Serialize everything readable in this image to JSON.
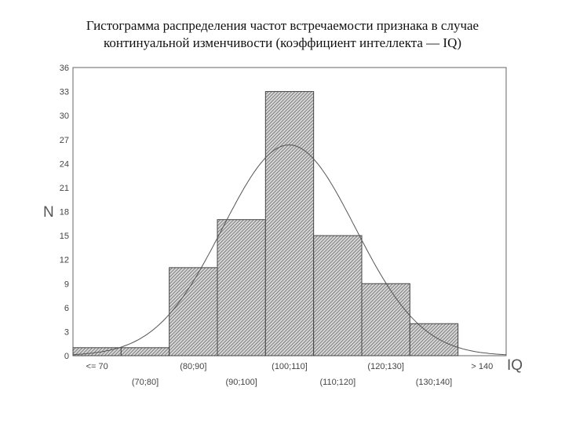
{
  "title_line1": "Гистограмма распределения частот встречаемости признака в случае",
  "title_line2": "континуальной изменчивости (коэффициент интеллекта — IQ)",
  "chart_data": {
    "type": "bar",
    "categories": [
      "<= 70",
      "(70;80]",
      "(80;90]",
      "(90;100]",
      "(100;110]",
      "(110;120]",
      "(120;130]",
      "(130;140]",
      "> 140"
    ],
    "values": [
      1,
      1,
      11,
      17,
      33,
      15,
      9,
      4,
      0
    ],
    "ylabel": "N",
    "xlabel": "IQ",
    "ylim": [
      0,
      36
    ],
    "yticks": [
      0,
      3,
      6,
      9,
      12,
      15,
      18,
      21,
      24,
      27,
      30,
      33,
      36
    ],
    "grid": false,
    "overlay": "normal curve",
    "bar_color": "#8a8a8a",
    "line_color": "#555555"
  }
}
